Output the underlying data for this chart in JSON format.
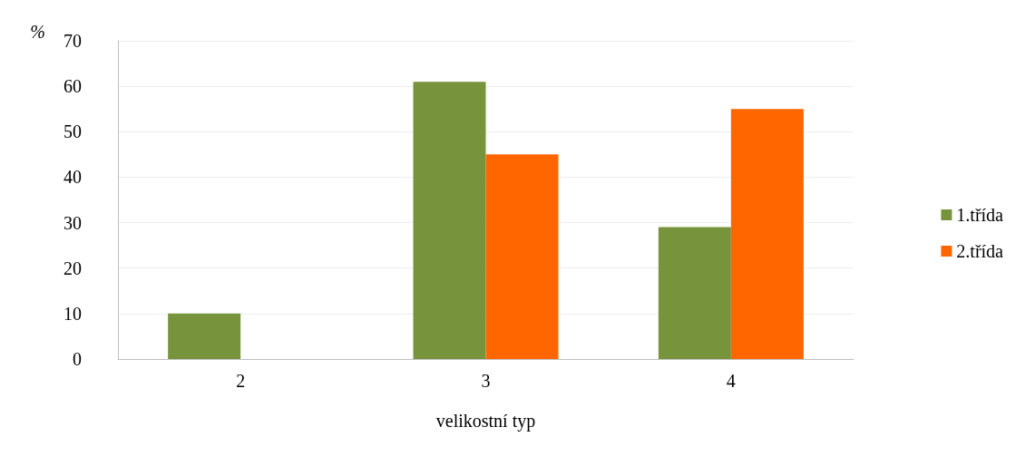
{
  "chart_data": {
    "type": "bar",
    "xlabel": "velikostní typ",
    "ylabel": "%",
    "categories": [
      "2",
      "3",
      "4"
    ],
    "series": [
      {
        "name": "1.třída",
        "color": "#77933c",
        "values": [
          10,
          61,
          29
        ]
      },
      {
        "name": "2.třída",
        "color": "#ff6600",
        "values": [
          null,
          45,
          55
        ]
      }
    ],
    "ylim": [
      0,
      70
    ],
    "yticks": [
      0,
      10,
      20,
      30,
      40,
      50,
      60,
      70
    ],
    "grid": "y",
    "legend": "right"
  }
}
